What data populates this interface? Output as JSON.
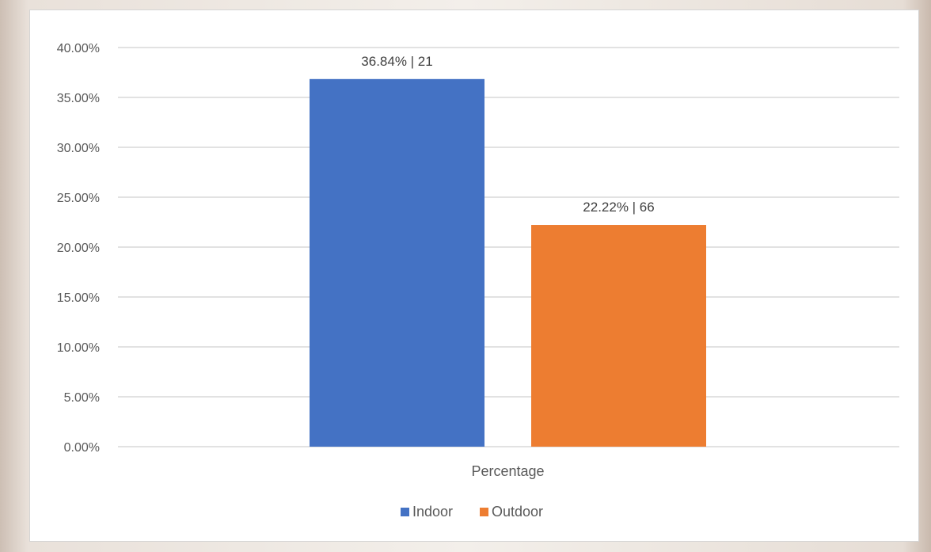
{
  "chart_data": {
    "type": "bar",
    "title": "",
    "xlabel": "",
    "ylabel": "",
    "categories": [
      "Percentage"
    ],
    "series": [
      {
        "name": "Indoor",
        "values": [
          36.84
        ],
        "label": "36.84% | 21",
        "color": "#4472c4"
      },
      {
        "name": "Outdoor",
        "values": [
          22.22
        ],
        "label": "22.22% | 66",
        "color": "#ed7d31"
      }
    ],
    "ylim": [
      0,
      40
    ],
    "ytick_values": [
      0,
      5,
      10,
      15,
      20,
      25,
      30,
      35,
      40
    ],
    "ytick_labels": [
      "0.00%",
      "5.00%",
      "10.00%",
      "15.00%",
      "20.00%",
      "25.00%",
      "30.00%",
      "35.00%",
      "40.00%"
    ],
    "grid": true,
    "gridline_color": "#d9d9d9",
    "legend_position": "bottom"
  }
}
